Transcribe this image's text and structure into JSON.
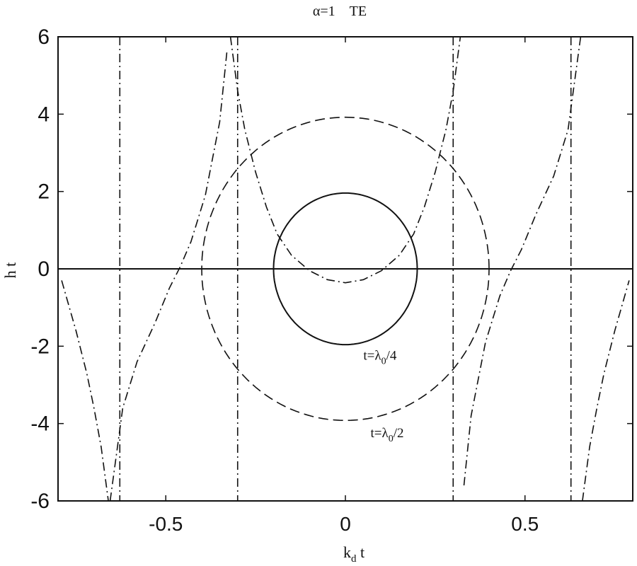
{
  "chart_data": {
    "type": "line",
    "title": "α=1    TE",
    "xlabel": "k",
    "xlabel_sub": "d",
    "xlabel_tail": " t",
    "ylabel": "h t",
    "xlim": [
      -0.8,
      0.8
    ],
    "ylim": [
      -6,
      6
    ],
    "x_ticks": [
      -0.5,
      0,
      0.5
    ],
    "x_tick_labels": [
      "-0.5",
      "0",
      "0.5"
    ],
    "y_ticks": [
      6,
      4,
      2,
      0,
      -2,
      -4,
      -6
    ],
    "y_tick_labels": [
      "6",
      "4",
      "2",
      "0",
      "-2",
      "-4",
      "-6"
    ],
    "grid": false,
    "annotations": [
      {
        "text_main": "t=λ",
        "text_sub": "0",
        "text_tail": "/4",
        "x": 0.05,
        "y": -2.35
      },
      {
        "text_main": "t=λ",
        "text_sub": "0",
        "text_tail": "/2",
        "x": 0.07,
        "y": -4.35
      }
    ],
    "series": [
      {
        "style": "solid",
        "kind": "circle",
        "radius": 0.2,
        "y_scale": 9.8
      },
      {
        "style": "dashed",
        "kind": "circle",
        "radius": 0.4,
        "y_scale": 9.8
      },
      {
        "style": "solid",
        "kind": "segment",
        "x": [
          -0.8,
          0.8
        ],
        "y": [
          0,
          0
        ]
      },
      {
        "style": "dashdot",
        "kind": "vline",
        "x": -0.628
      },
      {
        "style": "dashdot",
        "kind": "vline",
        "x": -0.3
      },
      {
        "style": "dashdot",
        "kind": "vline",
        "x": 0.3
      },
      {
        "style": "dashdot",
        "kind": "vline",
        "x": 0.628
      },
      {
        "style": "dashdot",
        "kind": "curve_center",
        "x_range": [
          -0.32,
          0.32
        ],
        "y": [
          [
            -0.32,
            6.0
          ],
          [
            -0.3,
            4.6
          ],
          [
            -0.28,
            3.6
          ],
          [
            -0.25,
            2.5
          ],
          [
            -0.22,
            1.6
          ],
          [
            -0.19,
            0.9
          ],
          [
            -0.15,
            0.35
          ],
          [
            -0.1,
            -0.05
          ],
          [
            -0.05,
            -0.28
          ],
          [
            0.0,
            -0.36
          ],
          [
            0.05,
            -0.28
          ],
          [
            0.1,
            -0.05
          ],
          [
            0.15,
            0.35
          ],
          [
            0.19,
            0.9
          ],
          [
            0.22,
            1.6
          ],
          [
            0.25,
            2.5
          ],
          [
            0.28,
            3.6
          ],
          [
            0.3,
            4.6
          ],
          [
            0.32,
            6.0
          ]
        ]
      },
      {
        "style": "dashdot",
        "kind": "curve_left",
        "y": [
          [
            -0.655,
            -6.0
          ],
          [
            -0.62,
            -3.6
          ],
          [
            -0.58,
            -2.4
          ],
          [
            -0.53,
            -1.4
          ],
          [
            -0.49,
            -0.5
          ],
          [
            -0.46,
            0.05
          ],
          [
            -0.43,
            0.7
          ],
          [
            -0.39,
            1.9
          ],
          [
            -0.35,
            3.8
          ],
          [
            -0.33,
            5.6
          ]
        ]
      },
      {
        "style": "dashdot",
        "kind": "curve_right",
        "y": [
          [
            0.33,
            -5.6
          ],
          [
            0.35,
            -3.8
          ],
          [
            0.39,
            -1.9
          ],
          [
            0.43,
            -0.7
          ],
          [
            0.46,
            -0.05
          ],
          [
            0.49,
            0.5
          ],
          [
            0.53,
            1.4
          ],
          [
            0.58,
            2.4
          ],
          [
            0.62,
            3.6
          ],
          [
            0.655,
            6.0
          ]
        ]
      },
      {
        "style": "dashdot",
        "kind": "curve_far_left",
        "y": [
          [
            -0.79,
            -0.3
          ],
          [
            -0.75,
            -1.6
          ],
          [
            -0.72,
            -2.7
          ],
          [
            -0.7,
            -3.6
          ],
          [
            -0.68,
            -4.6
          ],
          [
            -0.66,
            -6.0
          ]
        ]
      },
      {
        "style": "dashdot",
        "kind": "curve_far_right",
        "y": [
          [
            0.66,
            -6.0
          ],
          [
            0.68,
            -4.6
          ],
          [
            0.7,
            -3.6
          ],
          [
            0.72,
            -2.7
          ],
          [
            0.75,
            -1.6
          ],
          [
            0.79,
            -0.3
          ]
        ]
      }
    ]
  }
}
